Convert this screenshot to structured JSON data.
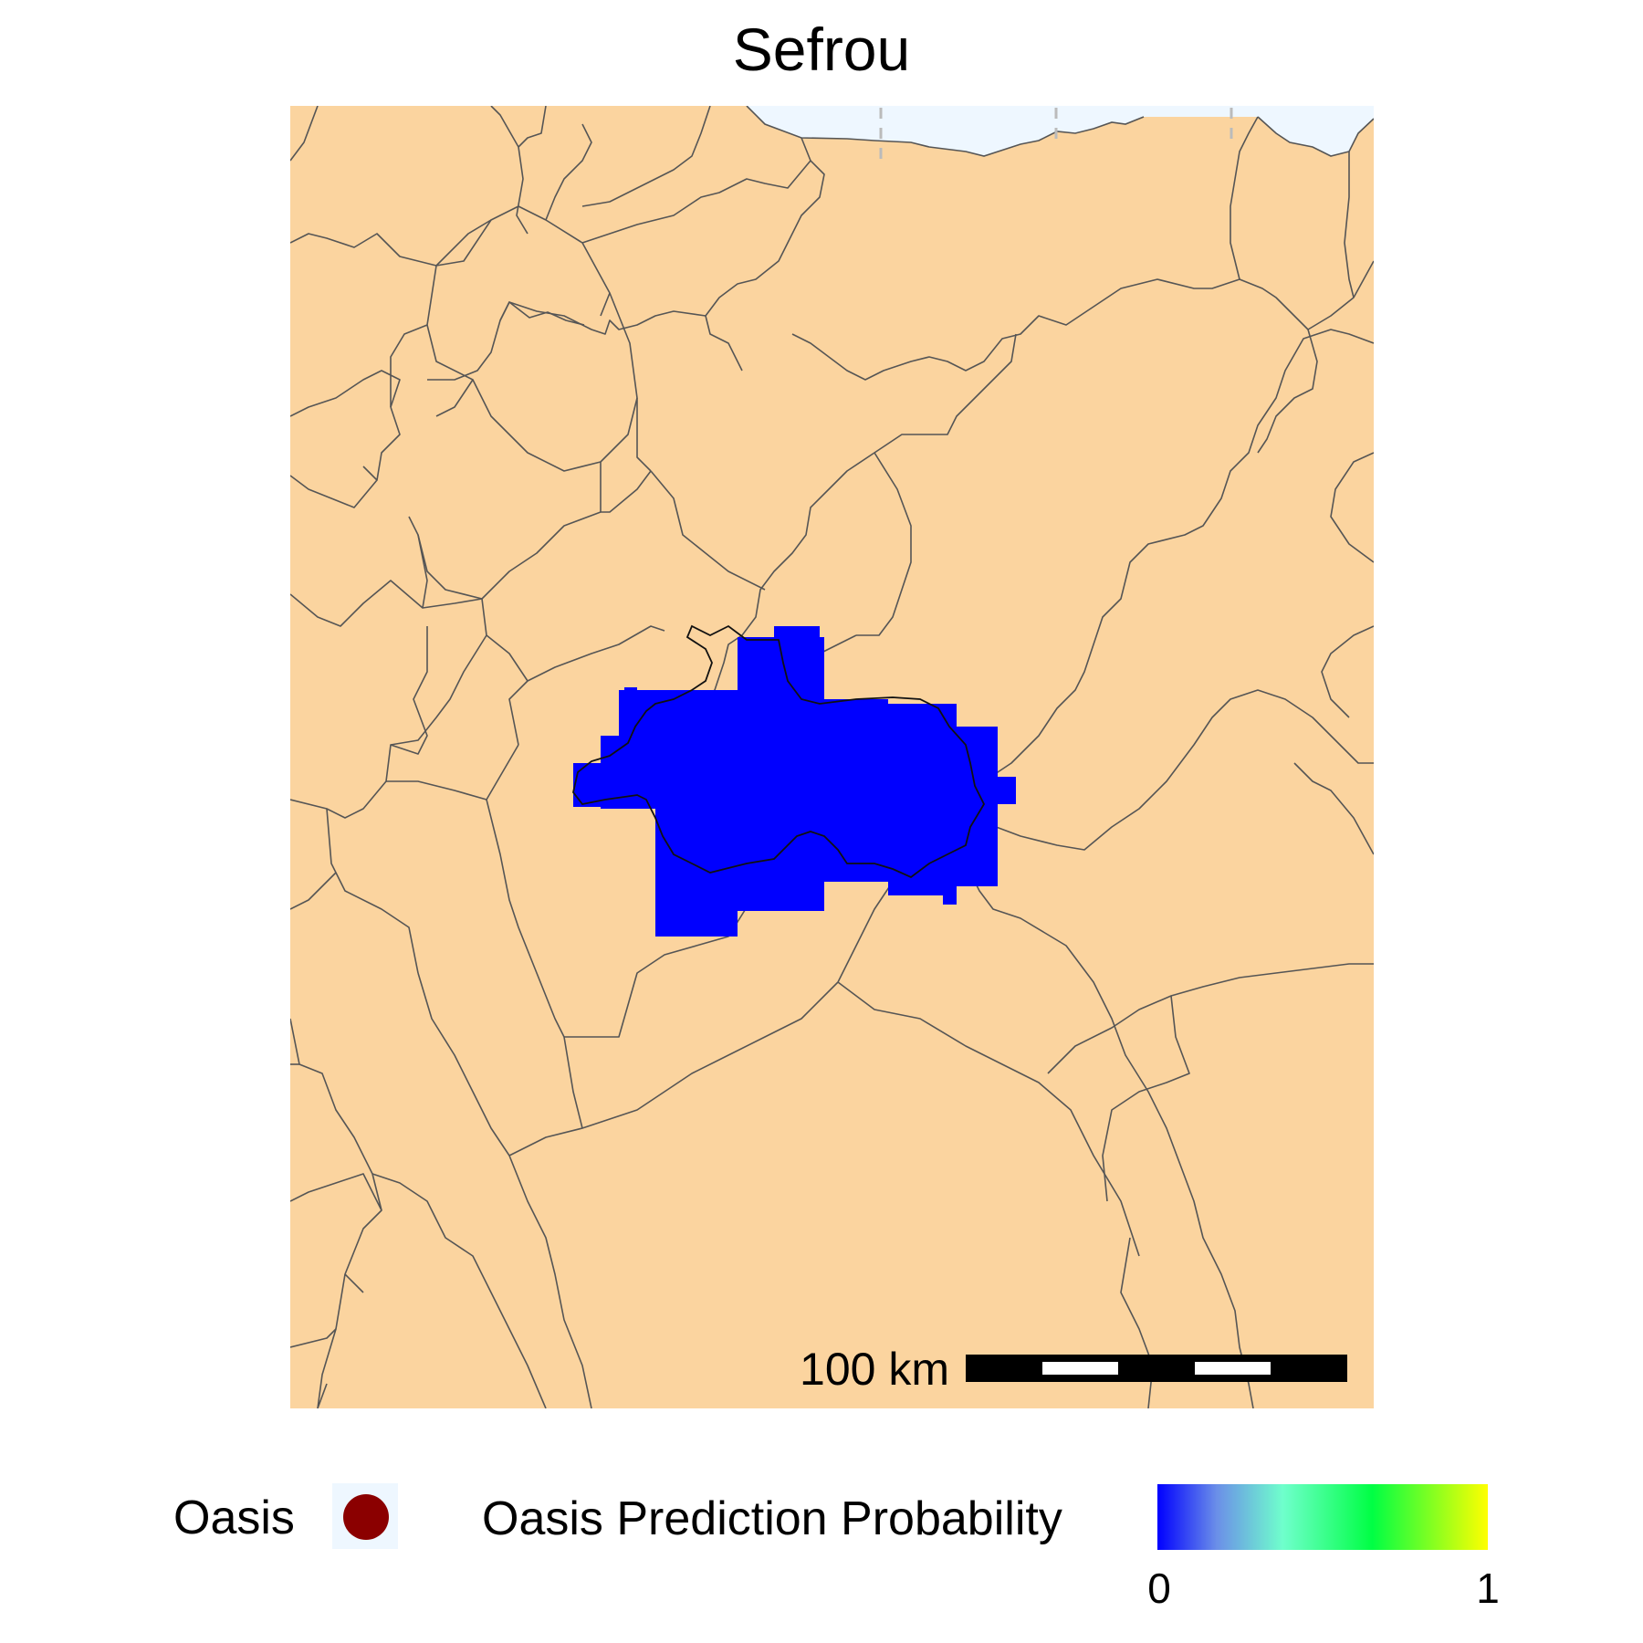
{
  "title": "Sefrou",
  "map": {
    "land_color": "#fbd49f",
    "sea_color": "#eef7ff",
    "border_color": "#555555",
    "prediction_color": "#0000ff"
  },
  "scalebar": {
    "label": "100 km"
  },
  "legend": {
    "oasis_label": "Oasis",
    "oasis_color": "#8b0000",
    "probability_label": "Oasis Prediction Probability",
    "probability_min": "0",
    "probability_max": "1",
    "gradient_colors": [
      "#0000ff",
      "#6fffcc",
      "#00ff44",
      "#ffff00"
    ]
  }
}
